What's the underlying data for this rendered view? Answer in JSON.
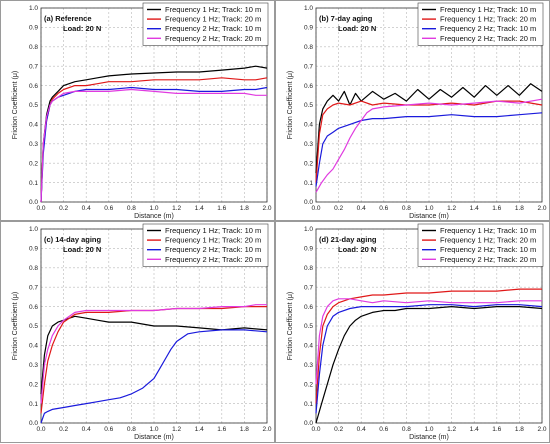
{
  "legend_entries": [
    {
      "name": "Frequency 1 Hz; Track: 10 m",
      "color": "#000000"
    },
    {
      "name": "Frequency 1 Hz; Track: 20 m",
      "color": "#e01818"
    },
    {
      "name": "Frequency 2 Hz; Track: 10 m",
      "color": "#1a1adc"
    },
    {
      "name": "Frequency 2 Hz; Track: 20 m",
      "color": "#e03ae0"
    }
  ],
  "chart_data": [
    {
      "type": "line",
      "title": "(a) Reference",
      "subtitle": "Load: 20 N",
      "xlabel": "Distance (m)",
      "ylabel": "Friction Coefficient (μ)",
      "xlim": [
        0,
        2.0
      ],
      "ylim": [
        0,
        1.0
      ],
      "xticks": [
        0,
        0.2,
        0.4,
        0.6,
        0.8,
        1.0,
        1.2,
        1.4,
        1.6,
        1.8,
        2.0
      ],
      "yticks": [
        0,
        0.1,
        0.2,
        0.3,
        0.4,
        0.5,
        0.6,
        0.7,
        0.8,
        0.9,
        1.0
      ],
      "grid": true,
      "legend": "top-right",
      "series": [
        {
          "name": "Frequency 1 Hz; Track: 10 m",
          "x": [
            0,
            0.02,
            0.05,
            0.08,
            0.1,
            0.15,
            0.2,
            0.3,
            0.4,
            0.5,
            0.6,
            0.8,
            1.0,
            1.2,
            1.4,
            1.6,
            1.8,
            1.9,
            2.0
          ],
          "y": [
            0,
            0.3,
            0.45,
            0.52,
            0.54,
            0.57,
            0.6,
            0.62,
            0.63,
            0.64,
            0.65,
            0.66,
            0.665,
            0.67,
            0.67,
            0.68,
            0.69,
            0.7,
            0.69
          ]
        },
        {
          "name": "Frequency 1 Hz; Track: 20 m",
          "x": [
            0,
            0.02,
            0.05,
            0.08,
            0.1,
            0.15,
            0.2,
            0.3,
            0.4,
            0.5,
            0.6,
            0.8,
            1.0,
            1.2,
            1.4,
            1.6,
            1.8,
            1.9,
            2.0
          ],
          "y": [
            0,
            0.3,
            0.42,
            0.5,
            0.53,
            0.56,
            0.58,
            0.6,
            0.6,
            0.61,
            0.62,
            0.62,
            0.63,
            0.63,
            0.63,
            0.64,
            0.63,
            0.63,
            0.64
          ]
        },
        {
          "name": "Frequency 2 Hz; Track: 10 m",
          "x": [
            0,
            0.02,
            0.05,
            0.08,
            0.1,
            0.15,
            0.2,
            0.3,
            0.4,
            0.5,
            0.6,
            0.8,
            1.0,
            1.2,
            1.4,
            1.6,
            1.8,
            1.9,
            2.0
          ],
          "y": [
            0,
            0.25,
            0.42,
            0.5,
            0.52,
            0.54,
            0.55,
            0.57,
            0.58,
            0.58,
            0.58,
            0.59,
            0.58,
            0.58,
            0.57,
            0.57,
            0.58,
            0.58,
            0.59
          ]
        },
        {
          "name": "Frequency 2 Hz; Track: 20 m",
          "x": [
            0,
            0.02,
            0.05,
            0.08,
            0.1,
            0.15,
            0.2,
            0.3,
            0.4,
            0.5,
            0.6,
            0.8,
            1.0,
            1.2,
            1.4,
            1.6,
            1.8,
            1.9,
            2.0
          ],
          "y": [
            0,
            0.3,
            0.44,
            0.5,
            0.52,
            0.54,
            0.56,
            0.57,
            0.57,
            0.57,
            0.57,
            0.58,
            0.57,
            0.56,
            0.56,
            0.56,
            0.56,
            0.55,
            0.55
          ]
        }
      ]
    },
    {
      "type": "line",
      "title": "(b) 7-day  aging",
      "subtitle": "Load: 20 N",
      "xlabel": "Distance (m)",
      "ylabel": "Friction Coefficient (μ)",
      "xlim": [
        0,
        2.0
      ],
      "ylim": [
        0,
        1.0
      ],
      "xticks": [
        0,
        0.2,
        0.4,
        0.6,
        0.8,
        1.0,
        1.2,
        1.4,
        1.6,
        1.8,
        2.0
      ],
      "yticks": [
        0,
        0.1,
        0.2,
        0.3,
        0.4,
        0.5,
        0.6,
        0.7,
        0.8,
        0.9,
        1.0
      ],
      "grid": true,
      "legend": "top-right",
      "series": [
        {
          "name": "Frequency 1 Hz; Track: 10 m",
          "x": [
            0,
            0.03,
            0.06,
            0.1,
            0.15,
            0.2,
            0.25,
            0.3,
            0.35,
            0.4,
            0.5,
            0.6,
            0.7,
            0.8,
            0.9,
            1.0,
            1.1,
            1.2,
            1.3,
            1.4,
            1.5,
            1.6,
            1.7,
            1.8,
            1.9,
            2.0
          ],
          "y": [
            0.15,
            0.4,
            0.48,
            0.52,
            0.55,
            0.52,
            0.57,
            0.5,
            0.56,
            0.52,
            0.57,
            0.53,
            0.56,
            0.52,
            0.58,
            0.53,
            0.58,
            0.54,
            0.59,
            0.54,
            0.6,
            0.55,
            0.6,
            0.55,
            0.61,
            0.57
          ]
        },
        {
          "name": "Frequency 1 Hz; Track: 20 m",
          "x": [
            0,
            0.03,
            0.06,
            0.1,
            0.15,
            0.2,
            0.3,
            0.4,
            0.5,
            0.6,
            0.8,
            1.0,
            1.2,
            1.4,
            1.6,
            1.8,
            2.0
          ],
          "y": [
            0.1,
            0.35,
            0.45,
            0.48,
            0.5,
            0.51,
            0.5,
            0.52,
            0.5,
            0.51,
            0.5,
            0.5,
            0.51,
            0.5,
            0.52,
            0.52,
            0.5
          ]
        },
        {
          "name": "Frequency 2 Hz; Track: 10 m",
          "x": [
            0,
            0.03,
            0.06,
            0.1,
            0.15,
            0.2,
            0.3,
            0.4,
            0.5,
            0.6,
            0.8,
            1.0,
            1.2,
            1.4,
            1.6,
            1.8,
            2.0
          ],
          "y": [
            0.08,
            0.2,
            0.3,
            0.34,
            0.36,
            0.38,
            0.4,
            0.42,
            0.43,
            0.43,
            0.44,
            0.44,
            0.45,
            0.44,
            0.44,
            0.45,
            0.46
          ]
        },
        {
          "name": "Frequency 2 Hz; Track: 20 m",
          "x": [
            0,
            0.05,
            0.1,
            0.15,
            0.2,
            0.25,
            0.3,
            0.35,
            0.4,
            0.45,
            0.5,
            0.6,
            0.8,
            1.0,
            1.2,
            1.4,
            1.6,
            1.8,
            2.0
          ],
          "y": [
            0.05,
            0.1,
            0.14,
            0.17,
            0.22,
            0.27,
            0.33,
            0.38,
            0.42,
            0.46,
            0.48,
            0.49,
            0.5,
            0.51,
            0.5,
            0.51,
            0.52,
            0.51,
            0.53
          ]
        }
      ]
    },
    {
      "type": "line",
      "title": "(c) 14-day  aging",
      "subtitle": "Load: 20 N",
      "xlabel": "Distance (m)",
      "ylabel": "Friction Coefficient (μ)",
      "xlim": [
        0,
        2.0
      ],
      "ylim": [
        0,
        1.0
      ],
      "xticks": [
        0,
        0.2,
        0.4,
        0.6,
        0.8,
        1.0,
        1.2,
        1.4,
        1.6,
        1.8,
        2.0
      ],
      "yticks": [
        0,
        0.1,
        0.2,
        0.3,
        0.4,
        0.5,
        0.6,
        0.7,
        0.8,
        0.9,
        1.0
      ],
      "grid": true,
      "legend": "top-right",
      "series": [
        {
          "name": "Frequency 1 Hz; Track: 10 m",
          "x": [
            0,
            0.03,
            0.06,
            0.1,
            0.15,
            0.2,
            0.3,
            0.4,
            0.5,
            0.6,
            0.8,
            1.0,
            1.2,
            1.4,
            1.6,
            1.8,
            2.0
          ],
          "y": [
            0.15,
            0.35,
            0.45,
            0.5,
            0.52,
            0.53,
            0.55,
            0.54,
            0.53,
            0.52,
            0.52,
            0.5,
            0.5,
            0.49,
            0.48,
            0.49,
            0.48
          ]
        },
        {
          "name": "Frequency 1 Hz; Track: 20 m",
          "x": [
            0,
            0.03,
            0.06,
            0.1,
            0.15,
            0.2,
            0.3,
            0.4,
            0.5,
            0.6,
            0.8,
            1.0,
            1.2,
            1.4,
            1.6,
            1.8,
            2.0
          ],
          "y": [
            0.05,
            0.2,
            0.32,
            0.4,
            0.47,
            0.52,
            0.56,
            0.57,
            0.57,
            0.57,
            0.58,
            0.58,
            0.59,
            0.59,
            0.59,
            0.6,
            0.6
          ]
        },
        {
          "name": "Frequency 2 Hz; Track: 10 m",
          "x": [
            0,
            0.03,
            0.06,
            0.1,
            0.2,
            0.3,
            0.4,
            0.5,
            0.6,
            0.7,
            0.8,
            0.9,
            1.0,
            1.05,
            1.1,
            1.15,
            1.2,
            1.3,
            1.4,
            1.6,
            1.8,
            2.0
          ],
          "y": [
            0,
            0.05,
            0.06,
            0.07,
            0.08,
            0.09,
            0.1,
            0.11,
            0.12,
            0.13,
            0.15,
            0.18,
            0.23,
            0.28,
            0.33,
            0.38,
            0.42,
            0.46,
            0.47,
            0.48,
            0.48,
            0.47
          ]
        },
        {
          "name": "Frequency 2 Hz; Track: 20 m",
          "x": [
            0,
            0.03,
            0.06,
            0.1,
            0.15,
            0.2,
            0.3,
            0.4,
            0.5,
            0.6,
            0.8,
            1.0,
            1.2,
            1.4,
            1.6,
            1.8,
            1.9,
            2.0
          ],
          "y": [
            0.1,
            0.3,
            0.38,
            0.45,
            0.5,
            0.53,
            0.57,
            0.58,
            0.58,
            0.58,
            0.58,
            0.58,
            0.59,
            0.59,
            0.6,
            0.6,
            0.61,
            0.61
          ]
        }
      ]
    },
    {
      "type": "line",
      "title": "(d) 21-day  aging",
      "subtitle": "Load: 20 N",
      "xlabel": "Distance (m)",
      "ylabel": "Friction Coefficient (μ)",
      "xlim": [
        0,
        2.0
      ],
      "ylim": [
        0,
        1.0
      ],
      "xticks": [
        0,
        0.2,
        0.4,
        0.6,
        0.8,
        1.0,
        1.2,
        1.4,
        1.6,
        1.8,
        2.0
      ],
      "yticks": [
        0,
        0.1,
        0.2,
        0.3,
        0.4,
        0.5,
        0.6,
        0.7,
        0.8,
        0.9,
        1.0
      ],
      "grid": true,
      "legend": "top-right",
      "series": [
        {
          "name": "Frequency 1 Hz; Track: 10 m",
          "x": [
            0,
            0.05,
            0.1,
            0.15,
            0.2,
            0.25,
            0.3,
            0.35,
            0.4,
            0.5,
            0.6,
            0.7,
            0.8,
            1.0,
            1.2,
            1.4,
            1.6,
            1.8,
            2.0
          ],
          "y": [
            0,
            0.1,
            0.2,
            0.3,
            0.38,
            0.45,
            0.5,
            0.53,
            0.55,
            0.57,
            0.58,
            0.58,
            0.59,
            0.59,
            0.6,
            0.59,
            0.6,
            0.6,
            0.59
          ]
        },
        {
          "name": "Frequency 1 Hz; Track: 20 m",
          "x": [
            0,
            0.03,
            0.06,
            0.1,
            0.15,
            0.2,
            0.3,
            0.4,
            0.5,
            0.6,
            0.8,
            1.0,
            1.2,
            1.4,
            1.6,
            1.8,
            2.0
          ],
          "y": [
            0.1,
            0.35,
            0.5,
            0.56,
            0.6,
            0.62,
            0.64,
            0.65,
            0.66,
            0.66,
            0.67,
            0.67,
            0.68,
            0.68,
            0.68,
            0.69,
            0.69
          ]
        },
        {
          "name": "Frequency 2 Hz; Track: 10 m",
          "x": [
            0,
            0.03,
            0.06,
            0.1,
            0.15,
            0.2,
            0.3,
            0.4,
            0.5,
            0.6,
            0.8,
            1.0,
            1.2,
            1.4,
            1.6,
            1.8,
            2.0
          ],
          "y": [
            0.05,
            0.25,
            0.4,
            0.5,
            0.55,
            0.57,
            0.59,
            0.6,
            0.6,
            0.6,
            0.6,
            0.61,
            0.61,
            0.6,
            0.61,
            0.61,
            0.6
          ]
        },
        {
          "name": "Frequency 2 Hz; Track: 20 m",
          "x": [
            0,
            0.03,
            0.06,
            0.1,
            0.15,
            0.2,
            0.3,
            0.4,
            0.5,
            0.6,
            0.8,
            1.0,
            1.2,
            1.4,
            1.6,
            1.8,
            2.0
          ],
          "y": [
            0.2,
            0.45,
            0.55,
            0.6,
            0.63,
            0.64,
            0.64,
            0.63,
            0.62,
            0.63,
            0.62,
            0.63,
            0.62,
            0.62,
            0.62,
            0.63,
            0.63
          ]
        }
      ]
    }
  ]
}
